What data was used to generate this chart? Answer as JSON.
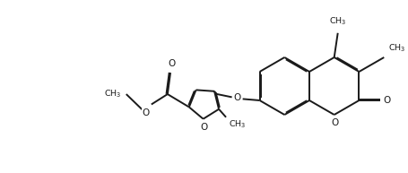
{
  "bg_color": "#ffffff",
  "line_color": "#1a1a1a",
  "line_width": 1.4,
  "dbo": 0.012,
  "figsize": [
    4.55,
    1.93
  ],
  "dpi": 100,
  "xlim": [
    0,
    4.55
  ],
  "ylim": [
    0,
    1.93
  ]
}
